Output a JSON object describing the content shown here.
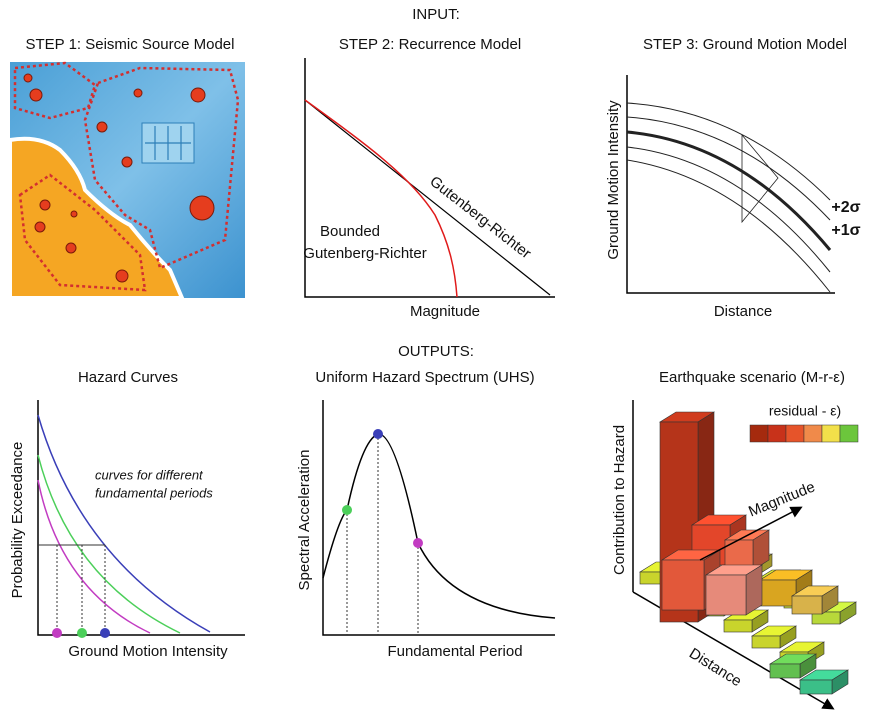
{
  "input_label": "INPUT:",
  "output_label": "OUTPUTS:",
  "step1": {
    "title": "STEP 1: Seismic Source Model"
  },
  "step2": {
    "title": "STEP 2: Recurrence Model",
    "bounded_label": [
      "Bounded",
      "Gutenberg-Richter"
    ],
    "gr_label": "Gutenberg-Richter",
    "x_label": "Magnitude"
  },
  "step3": {
    "title": "STEP 3: Ground Motion Model",
    "y_label": "Ground Motion Intensity",
    "x_label": "Distance",
    "sigma_labels": [
      "+2σ",
      "+1σ"
    ]
  },
  "hazard": {
    "title": "Hazard Curves",
    "y_label": "Probability Exceedance",
    "note": [
      "curves for different",
      "fundamental periods"
    ],
    "x_label": "Ground Motion Intensity"
  },
  "uhs": {
    "title": "Uniform Hazard Spectrum (UHS)",
    "y_label": "Spectral Acceleration",
    "x_label": "Fundamental Period"
  },
  "scenario": {
    "title": "Earthquake scenario (M-r-ε)",
    "y_label": "Contribution to Hazard",
    "legend_title": "residual - ε)",
    "x_label": "Magnitude",
    "z_label": "Distance"
  }
}
